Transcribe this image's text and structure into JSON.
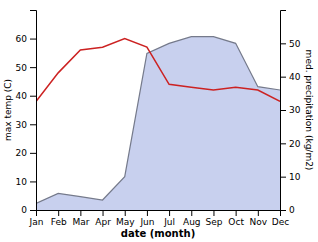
{
  "chart_data": {
    "type": "line",
    "categories": [
      "Jan",
      "Feb",
      "Mar",
      "Apr",
      "May",
      "Jun",
      "Jul",
      "Aug",
      "Sep",
      "Oct",
      "Nov",
      "Dec"
    ],
    "xlabel": "date (month)",
    "ylabel": "max temp (C)",
    "y2label": "med. precipitation (kg/m2)",
    "ylim": [
      0,
      70
    ],
    "yticks": [
      0,
      10,
      20,
      30,
      40,
      50,
      60
    ],
    "y2lim": [
      0,
      60
    ],
    "y2ticks": [
      0,
      10,
      20,
      30,
      40,
      50
    ],
    "grid": false,
    "series": [
      {
        "type": "area",
        "axis": "y2",
        "color": "#c8d0ee",
        "values": [
          2,
          5,
          4,
          3,
          10,
          47,
          50,
          52,
          52,
          50,
          37,
          36
        ]
      },
      {
        "type": "line",
        "color": "#cc2222",
        "values": [
          38,
          48,
          56,
          57,
          60,
          57,
          44,
          43,
          42,
          43,
          42,
          38
        ]
      }
    ]
  }
}
